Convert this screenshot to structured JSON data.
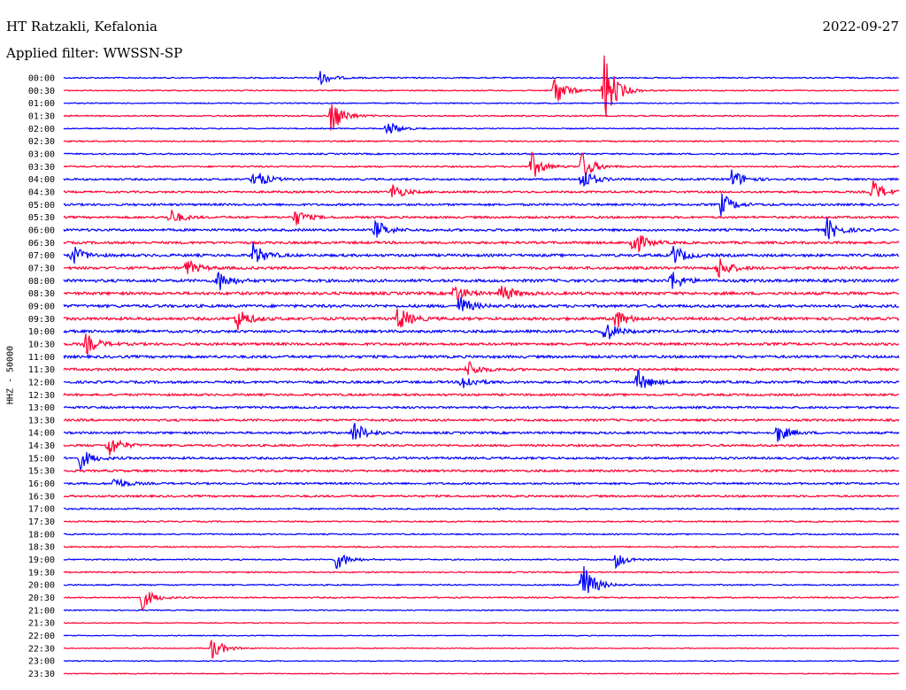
{
  "header": {
    "station": "HT Ratzakli, Kefalonia",
    "date": "2022-09-27",
    "filter": "Applied filter: WWSSN-SP"
  },
  "colors": {
    "even_rows": "#0000ff",
    "odd_rows": "#ff0033",
    "background": "#ffffff",
    "text": "#000000"
  },
  "chart_data": {
    "type": "line",
    "subtype": "helicorder",
    "title": "HT Ratzakli, Kefalonia",
    "date": "2022-09-27",
    "filter": "Applied filter: WWSSN-SP",
    "ylabel": "HHZ - 50000",
    "row_interval_minutes": 30,
    "row_labels": [
      "00:00",
      "00:30",
      "01:00",
      "01:30",
      "02:00",
      "02:30",
      "03:00",
      "03:30",
      "04:00",
      "04:30",
      "05:00",
      "05:30",
      "06:00",
      "06:30",
      "07:00",
      "07:30",
      "08:00",
      "08:30",
      "09:00",
      "09:30",
      "10:00",
      "10:30",
      "11:00",
      "11:30",
      "12:00",
      "12:30",
      "13:00",
      "13:30",
      "14:00",
      "14:30",
      "15:00",
      "15:30",
      "16:00",
      "16:30",
      "17:00",
      "17:30",
      "18:00",
      "18:30",
      "19:00",
      "19:30",
      "20:00",
      "20:30",
      "21:00",
      "21:30",
      "22:00",
      "22:30",
      "23:00",
      "23:30"
    ],
    "color_pattern": [
      "blue",
      "red"
    ],
    "background_noise_level": [
      0.6,
      0.5,
      0.5,
      0.6,
      0.5,
      0.6,
      0.7,
      0.7,
      0.9,
      0.9,
      1.0,
      1.0,
      1.1,
      1.1,
      1.2,
      1.2,
      1.3,
      1.3,
      1.3,
      1.3,
      1.2,
      1.2,
      1.2,
      1.1,
      1.1,
      1.0,
      1.0,
      1.0,
      1.0,
      1.0,
      1.0,
      1.0,
      0.9,
      0.9,
      0.7,
      0.6,
      0.6,
      0.6,
      0.6,
      0.6,
      0.6,
      0.6,
      0.5,
      0.4,
      0.4,
      0.4,
      0.4,
      0.4
    ],
    "events": [
      {
        "row": 0,
        "minute": 9.2,
        "amplitude": 8
      },
      {
        "row": 1,
        "minute": 17.6,
        "amplitude": 20
      },
      {
        "row": 1,
        "minute": 19.4,
        "amplitude": 45
      },
      {
        "row": 3,
        "minute": 9.6,
        "amplitude": 22
      },
      {
        "row": 4,
        "minute": 11.6,
        "amplitude": 10
      },
      {
        "row": 7,
        "minute": 16.8,
        "amplitude": 16
      },
      {
        "row": 7,
        "minute": 18.6,
        "amplitude": 18
      },
      {
        "row": 8,
        "minute": 6.8,
        "amplitude": 14
      },
      {
        "row": 8,
        "minute": 18.6,
        "amplitude": 14
      },
      {
        "row": 8,
        "minute": 24.0,
        "amplitude": 12
      },
      {
        "row": 9,
        "minute": 11.8,
        "amplitude": 10
      },
      {
        "row": 9,
        "minute": 29.0,
        "amplitude": 16
      },
      {
        "row": 10,
        "minute": 23.6,
        "amplitude": 14
      },
      {
        "row": 11,
        "minute": 3.8,
        "amplitude": 10
      },
      {
        "row": 11,
        "minute": 8.3,
        "amplitude": 10
      },
      {
        "row": 12,
        "minute": 11.2,
        "amplitude": 12
      },
      {
        "row": 12,
        "minute": 27.4,
        "amplitude": 14
      },
      {
        "row": 13,
        "minute": 20.4,
        "amplitude": 18
      },
      {
        "row": 14,
        "minute": 0.3,
        "amplitude": 12
      },
      {
        "row": 14,
        "minute": 6.8,
        "amplitude": 14
      },
      {
        "row": 14,
        "minute": 21.9,
        "amplitude": 12
      },
      {
        "row": 15,
        "minute": 4.4,
        "amplitude": 10
      },
      {
        "row": 15,
        "minute": 23.5,
        "amplitude": 14
      },
      {
        "row": 16,
        "minute": 5.5,
        "amplitude": 14
      },
      {
        "row": 16,
        "minute": 21.8,
        "amplitude": 12
      },
      {
        "row": 17,
        "minute": 15.7,
        "amplitude": 12
      },
      {
        "row": 17,
        "minute": 14.0,
        "amplitude": 12
      },
      {
        "row": 18,
        "minute": 14.2,
        "amplitude": 12
      },
      {
        "row": 19,
        "minute": 6.2,
        "amplitude": 14
      },
      {
        "row": 19,
        "minute": 12.0,
        "amplitude": 16
      },
      {
        "row": 19,
        "minute": 19.8,
        "amplitude": 12
      },
      {
        "row": 20,
        "minute": 19.4,
        "amplitude": 14
      },
      {
        "row": 21,
        "minute": 0.8,
        "amplitude": 12
      },
      {
        "row": 23,
        "minute": 14.5,
        "amplitude": 10
      },
      {
        "row": 24,
        "minute": 14.3,
        "amplitude": 10
      },
      {
        "row": 24,
        "minute": 20.6,
        "amplitude": 14
      },
      {
        "row": 28,
        "minute": 10.4,
        "amplitude": 14
      },
      {
        "row": 28,
        "minute": 25.6,
        "amplitude": 12
      },
      {
        "row": 29,
        "minute": 1.6,
        "amplitude": 14
      },
      {
        "row": 30,
        "minute": 0.6,
        "amplitude": 12
      },
      {
        "row": 32,
        "minute": 1.8,
        "amplitude": 8
      },
      {
        "row": 38,
        "minute": 9.8,
        "amplitude": 12
      },
      {
        "row": 38,
        "minute": 19.8,
        "amplitude": 10
      },
      {
        "row": 40,
        "minute": 18.6,
        "amplitude": 30
      },
      {
        "row": 41,
        "minute": 2.8,
        "amplitude": 14
      },
      {
        "row": 45,
        "minute": 5.3,
        "amplitude": 14
      }
    ]
  }
}
